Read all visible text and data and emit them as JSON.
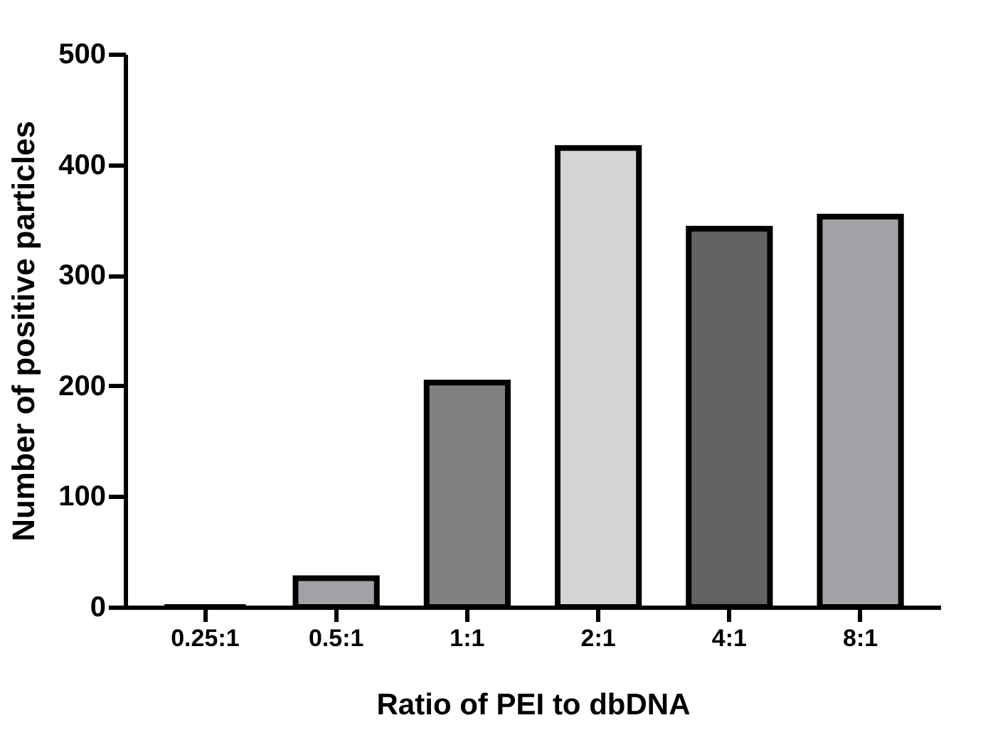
{
  "chart_data": {
    "type": "bar",
    "xlabel": "Ratio of PEI to dbDNA",
    "ylabel": "Number of positive particles",
    "categories": [
      "0.25:1",
      "0.5:1",
      "1:1",
      "2:1",
      "4:1",
      "8:1"
    ],
    "values": [
      0,
      26,
      203,
      415,
      342,
      353
    ],
    "colors": [
      "#000000",
      "#a2a1a6",
      "#808080",
      "#d4d4d4",
      "#626262",
      "#a2a1a6"
    ],
    "ylim": [
      0,
      500
    ],
    "yticks": [
      0,
      100,
      200,
      300,
      400,
      500
    ],
    "grid": false
  }
}
